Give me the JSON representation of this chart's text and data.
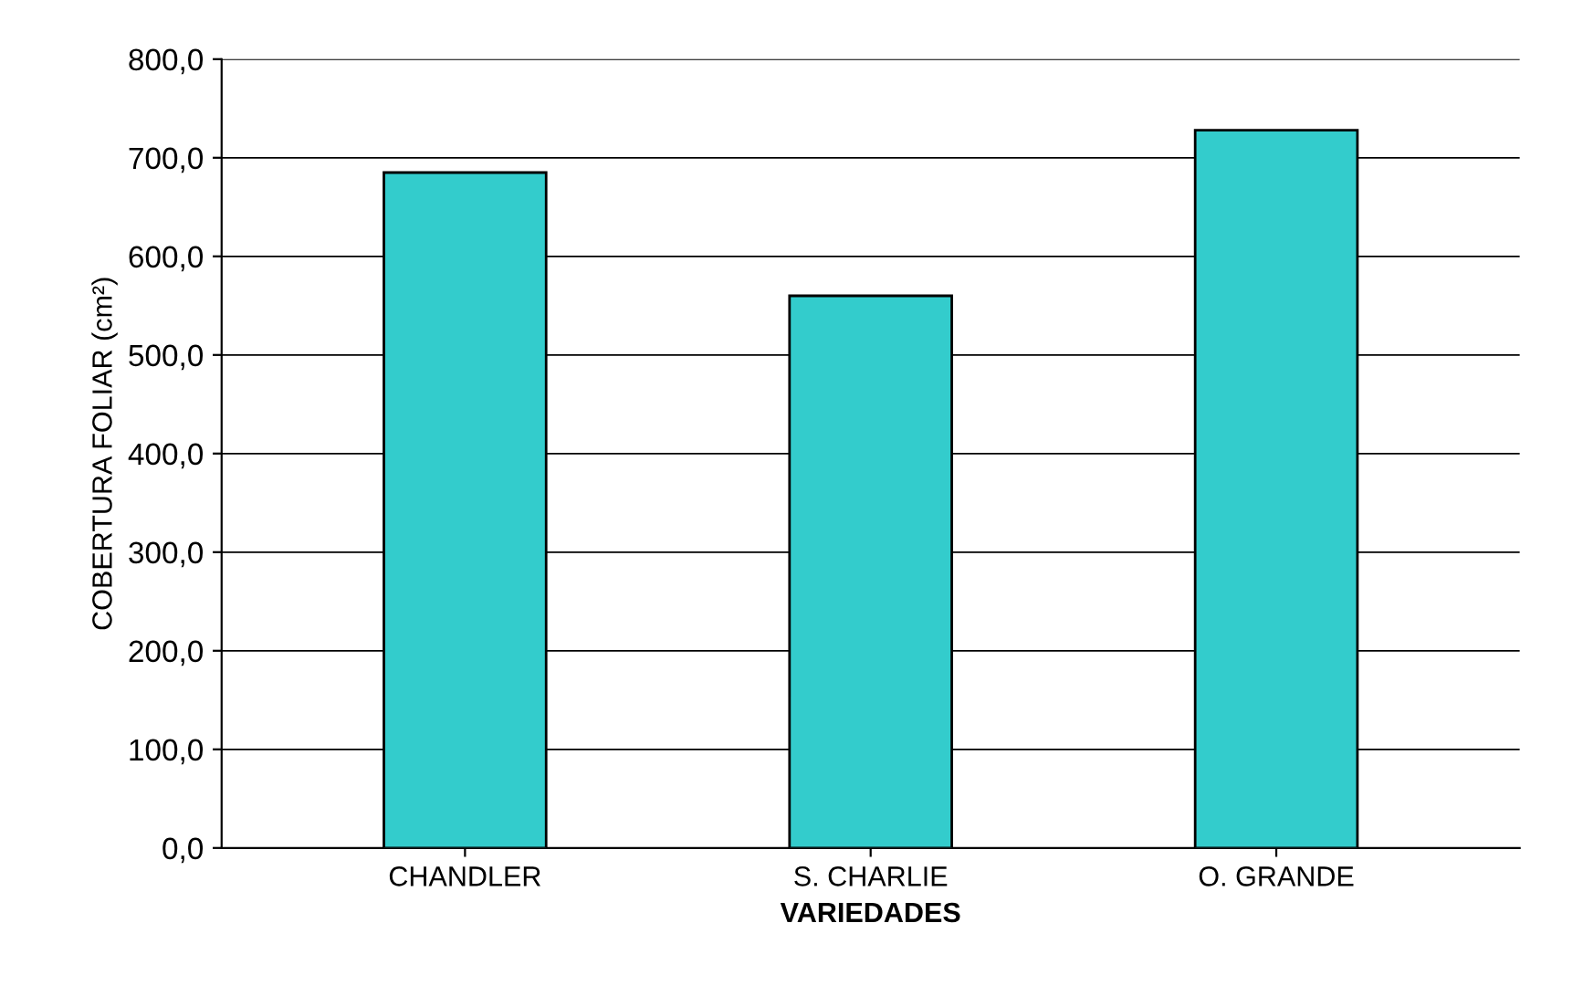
{
  "chart_data": {
    "type": "bar",
    "xlabel": "VARIEDADES",
    "ylabel": "COBERTURA FOLIAR (cm²)",
    "categories": [
      "CHANDLER",
      "S. CHARLIE",
      "O. GRANDE"
    ],
    "values": [
      685,
      560,
      728
    ],
    "color": "#33cccc",
    "ylim": [
      0,
      800
    ],
    "yticks": [
      {
        "value": 0,
        "label": "0,0"
      },
      {
        "value": 100,
        "label": "100,0"
      },
      {
        "value": 200,
        "label": "200,0"
      },
      {
        "value": 300,
        "label": "300,0"
      },
      {
        "value": 400,
        "label": "400,0"
      },
      {
        "value": 500,
        "label": "500,0"
      },
      {
        "value": 600,
        "label": "600,0"
      },
      {
        "value": 700,
        "label": "700,0"
      },
      {
        "value": 800,
        "label": "800,0"
      }
    ],
    "grid": "y"
  }
}
